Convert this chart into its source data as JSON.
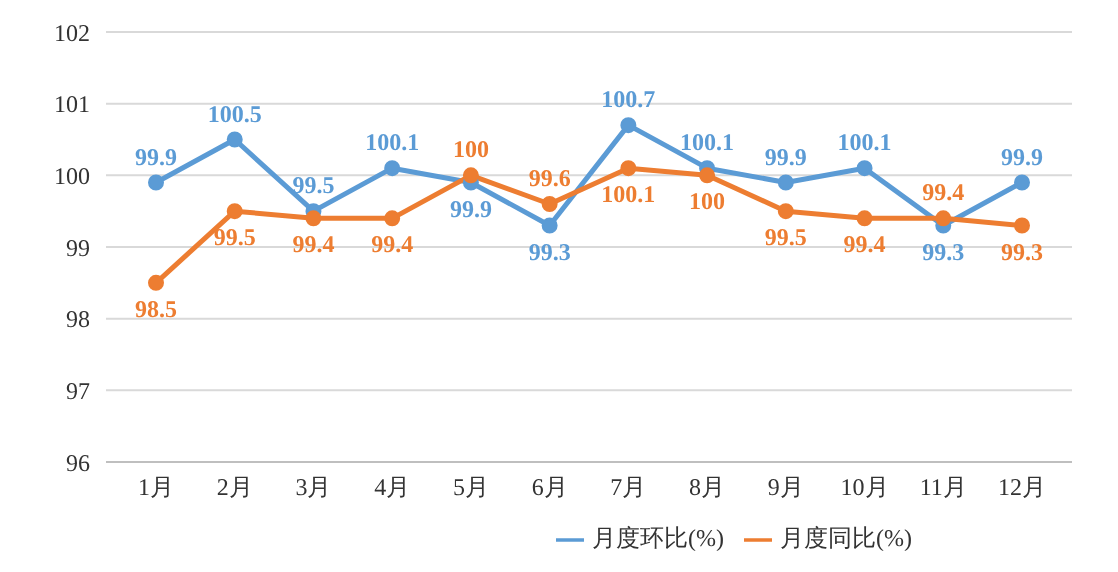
{
  "chart_data": {
    "type": "line",
    "categories": [
      "1月",
      "2月",
      "3月",
      "4月",
      "5月",
      "6月",
      "7月",
      "8月",
      "9月",
      "10月",
      "11月",
      "12月"
    ],
    "series": [
      {
        "name": "月度环比(%)",
        "color": "#5b9bd5",
        "values": [
          99.9,
          100.5,
          99.5,
          100.1,
          99.9,
          99.3,
          100.7,
          100.1,
          99.9,
          100.1,
          99.3,
          99.9
        ]
      },
      {
        "name": "月度同比(%)",
        "color": "#ed7d31",
        "values": [
          98.5,
          99.5,
          99.4,
          99.4,
          100,
          99.6,
          100.1,
          100,
          99.5,
          99.4,
          99.4,
          99.3
        ]
      }
    ],
    "ylim": [
      96,
      102
    ],
    "yticks": [
      96,
      97,
      98,
      99,
      100,
      101,
      102
    ],
    "grid": "y",
    "legend": "bottom",
    "marker": "circle",
    "line_style": "solid",
    "data_labels": true
  }
}
